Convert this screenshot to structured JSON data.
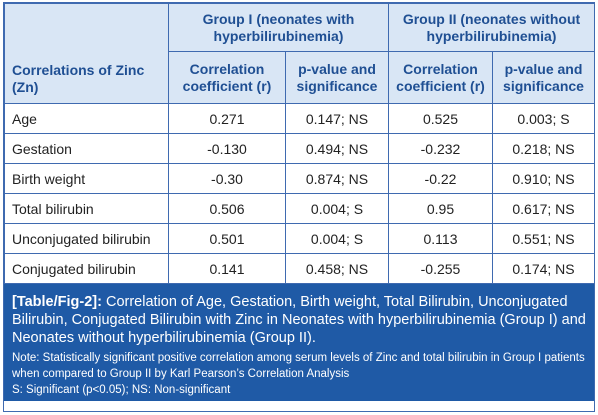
{
  "table": {
    "row_header": "Correlations of Zinc (Zn)",
    "groups": [
      "Group I (neonates with hyperbilirubinemia)",
      "Group II (neonates without hyperbilirubinemia)"
    ],
    "subheaders": [
      "Correlation coefficient (r)",
      "p-value and significance",
      "Correlation coefficient (r)",
      "p-value and significance"
    ],
    "rows": [
      {
        "label": "Age",
        "g1_r": "0.271",
        "g1_p": "0.147; NS",
        "g2_r": "0.525",
        "g2_p": "0.003; S"
      },
      {
        "label": "Gestation",
        "g1_r": "-0.130",
        "g1_p": "0.494; NS",
        "g2_r": "-0.232",
        "g2_p": "0.218; NS"
      },
      {
        "label": "Birth weight",
        "g1_r": "-0.30",
        "g1_p": "0.874; NS",
        "g2_r": "-0.22",
        "g2_p": "0.910; NS"
      },
      {
        "label": "Total bilirubin",
        "g1_r": "0.506",
        "g1_p": "0.004; S",
        "g2_r": "0.95",
        "g2_p": "0.617; NS"
      },
      {
        "label": "Unconjugated bilirubin",
        "g1_r": "0.501",
        "g1_p": "0.004; S",
        "g2_r": "0.113",
        "g2_p": "0.551; NS"
      },
      {
        "label": "Conjugated bilirubin",
        "g1_r": "0.141",
        "g1_p": "0.458; NS",
        "g2_r": "-0.255",
        "g2_p": "0.174; NS"
      }
    ]
  },
  "caption": {
    "tag": "[Table/Fig-2]:",
    "text": "Correlation of Age, Gestation, Birth weight, Total Bilirubin, Unconjugated Bilirubin, Conjugated Bilirubin with Zinc in Neonates with hyperbilirubinemia (Group I) and Neonates without hyperbilirubinemia (Group II).",
    "note": "Note: Statistically significant positive correlation among serum levels of Zinc and total bilirubin in Group I patients when compared to Group II by Karl Pearson’s Correlation Analysis",
    "legend": "S: Significant (p<0.05); NS: Non-significant"
  },
  "colors": {
    "header_bg": "#d9e6f5",
    "header_text": "#1f4f93",
    "border": "#3f6ab0",
    "caption_bg": "#1f5aa6"
  }
}
